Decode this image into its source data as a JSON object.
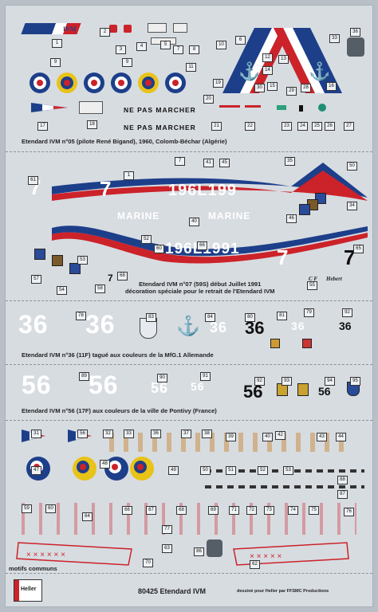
{
  "section1": {
    "caption": "Etendard IVM n°05 (pilote René Bigand), 1960, Colomb-Béchar (Algérie)",
    "stencil": [
      "NE  PAS  MARCHER",
      "NE  PAS  MARCHER"
    ],
    "fin_text": "IVM",
    "numbers": [
      "1",
      "2",
      "3",
      "4",
      "5",
      "6",
      "7",
      "8",
      "9",
      "9",
      "10",
      "11",
      "12",
      "13",
      "14",
      "15",
      "16",
      "17",
      "18",
      "19",
      "20",
      "21",
      "22",
      "23",
      "24",
      "25",
      "26",
      "27",
      "28",
      "29",
      "30",
      "33",
      "36"
    ]
  },
  "section2": {
    "caption": "Etendard IVM n°07 (59S) début Juillet 1991\ndécoration spéciale pour le retrait de l'Etendard IVM",
    "serial": "196L199",
    "serial2": "196L1991",
    "marine": "MARINE",
    "digit": "7",
    "signature_a": "C F",
    "signature_b": "Hebert",
    "numbers": [
      "7",
      "35",
      "41",
      "45",
      "61",
      "1",
      "50",
      "34",
      "40",
      "46",
      "65",
      "66",
      "52",
      "57",
      "54",
      "68",
      "58",
      "60",
      "53",
      "55"
    ]
  },
  "section3": {
    "caption": "Etendard IVM n°36 (11F) tagué aux couleurs de la MfG.1 Allemande",
    "digits": [
      "36",
      "36",
      "36",
      "36",
      "36",
      "36"
    ],
    "numbers": [
      "78",
      "83",
      "84",
      "80",
      "81",
      "79",
      "92"
    ]
  },
  "section4": {
    "caption": "Etendard IVM n°56 (17F) aux couleurs de la ville de Pontivy (France)",
    "digits": [
      "56",
      "56",
      "56",
      "56",
      "56",
      "56"
    ],
    "numbers": [
      "89",
      "90",
      "91",
      "92",
      "93",
      "94",
      "95"
    ]
  },
  "section5": {
    "caption": "motifs communs",
    "numbers": [
      "31",
      "56",
      "32",
      "33",
      "36",
      "37",
      "38",
      "39",
      "43",
      "44",
      "42",
      "40",
      "47",
      "48",
      "49",
      "50",
      "51",
      "52",
      "53",
      "88",
      "87",
      "60",
      "59",
      "64",
      "66",
      "67",
      "68",
      "69",
      "71",
      "72",
      "73",
      "74",
      "75",
      "76",
      "77",
      "70",
      "62",
      "63",
      "86",
      "97"
    ]
  },
  "footer": {
    "brand": "Heller",
    "title": "80425 Etendard IVM",
    "credit": "dessiné pour Heller par FFSMC Productions"
  }
}
